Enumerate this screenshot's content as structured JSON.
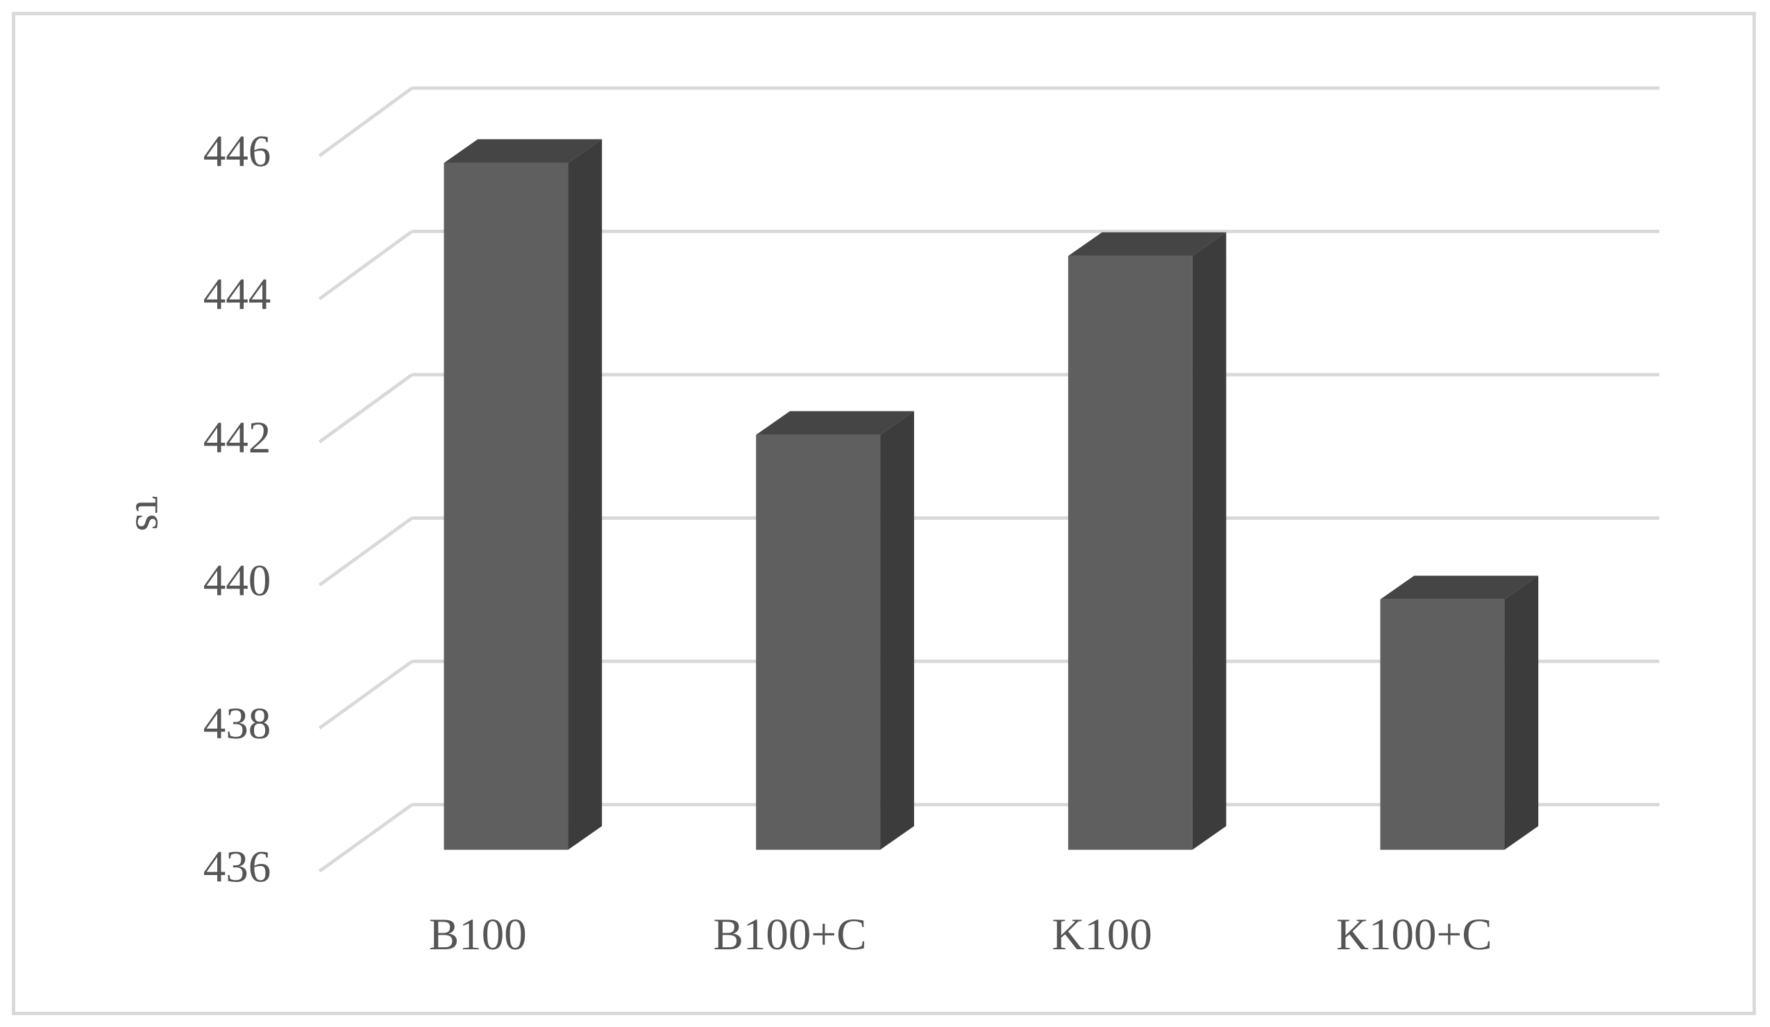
{
  "chart_data": {
    "type": "bar",
    "three_d": true,
    "y_label": "τs",
    "categories": [
      "B100",
      "B100+C",
      "K100",
      "K100+C"
    ],
    "values": [
      445.6,
      441.8,
      444.3,
      439.5
    ],
    "color": "#5f5f5f",
    "side_color": "#3c3c3c",
    "top_color": "#454545",
    "ylim": [
      436,
      446
    ],
    "yticks": [
      436,
      438,
      440,
      442,
      444,
      446
    ],
    "grid": true
  }
}
